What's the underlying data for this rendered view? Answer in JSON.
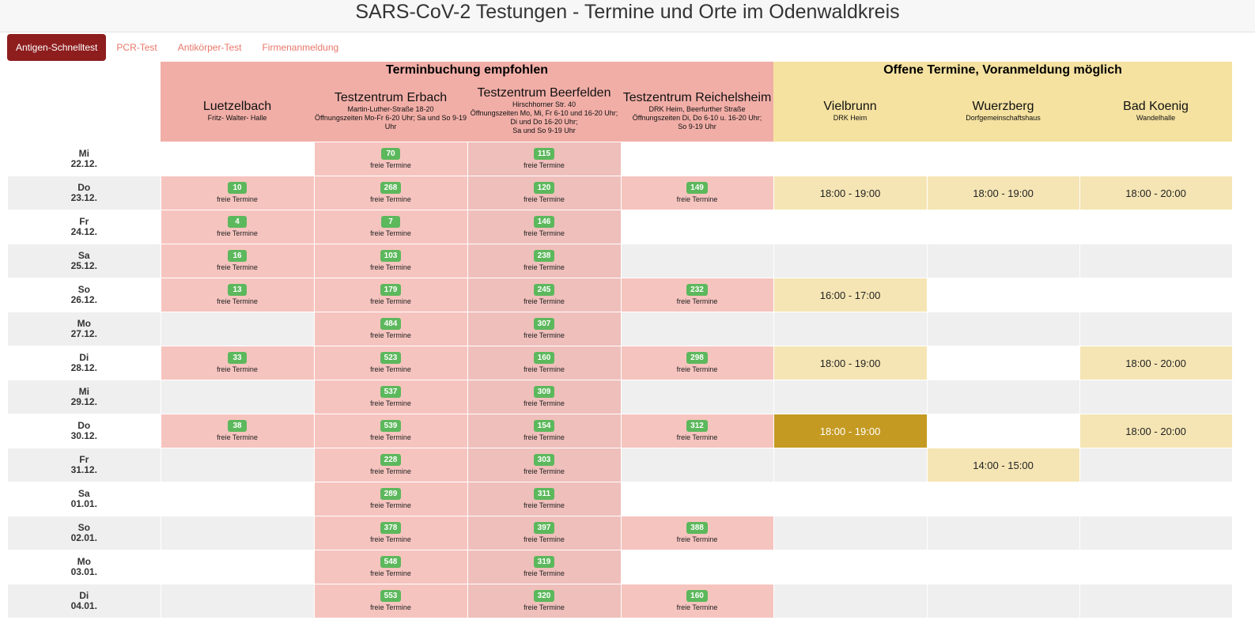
{
  "page": {
    "title": "SARS-CoV-2 Testungen - Termine und Orte im Odenwaldkreis"
  },
  "tabs": [
    {
      "label": "Antigen-Schnelltest",
      "active": true
    },
    {
      "label": "PCR-Test",
      "active": false
    },
    {
      "label": "Antikörper-Test",
      "active": false
    },
    {
      "label": "Firmenanmeldung",
      "active": false
    }
  ],
  "groups": {
    "recommended": "Terminbuchung empfohlen",
    "open": "Offene Termine, Voranmeldung möglich"
  },
  "locations": [
    {
      "name": "Luetzelbach",
      "sub": [
        "Fritz- Walter- Halle"
      ]
    },
    {
      "name": "Testzentrum Erbach",
      "sub": [
        "Martin-Luther-Straße 18-20",
        "Öffnungszeiten Mo-Fr 6-20 Uhr; Sa und So 9-19 Uhr"
      ]
    },
    {
      "name": "Testzentrum Beerfelden",
      "sub": [
        "Hirschhorner Str. 40",
        "Öffnungszeiten Mo, Mi, Fr 6-10 und 16-20 Uhr;",
        "Di und Do 16-20 Uhr;",
        "Sa und So 9-19 Uhr"
      ]
    },
    {
      "name": "Testzentrum Reichelsheim",
      "sub": [
        "DRK Heim, Beerfurther Straße",
        "Öffnungszeiten Di, Do 6-10 u. 16-20 Uhr;",
        "So 9-19 Uhr"
      ]
    },
    {
      "name": "Vielbrunn",
      "sub": [
        "DRK Heim"
      ]
    },
    {
      "name": "Wuerzberg",
      "sub": [
        "Dorfgemeinschaftshaus"
      ]
    },
    {
      "name": "Bad Koenig",
      "sub": [
        "Wandelhalle"
      ]
    }
  ],
  "free_label": "freie Termine",
  "rows": [
    {
      "day": "Mi",
      "date": "22.12.",
      "free": [
        null,
        70,
        115,
        null
      ],
      "open": [
        null,
        null,
        null
      ]
    },
    {
      "day": "Do",
      "date": "23.12.",
      "free": [
        10,
        268,
        120,
        149
      ],
      "open": [
        "18:00 - 19:00",
        "18:00 - 19:00",
        "18:00 - 20:00"
      ]
    },
    {
      "day": "Fr",
      "date": "24.12.",
      "free": [
        4,
        7,
        146,
        null
      ],
      "open": [
        null,
        null,
        null
      ]
    },
    {
      "day": "Sa",
      "date": "25.12.",
      "free": [
        16,
        103,
        238,
        null
      ],
      "open": [
        null,
        null,
        null
      ]
    },
    {
      "day": "So",
      "date": "26.12.",
      "free": [
        13,
        179,
        245,
        232
      ],
      "open": [
        "16:00 - 17:00",
        null,
        null
      ]
    },
    {
      "day": "Mo",
      "date": "27.12.",
      "free": [
        null,
        484,
        307,
        null
      ],
      "open": [
        null,
        null,
        null
      ]
    },
    {
      "day": "Di",
      "date": "28.12.",
      "free": [
        33,
        523,
        160,
        298
      ],
      "open": [
        "18:00 - 19:00",
        null,
        "18:00 - 20:00"
      ]
    },
    {
      "day": "Mi",
      "date": "29.12.",
      "free": [
        null,
        537,
        309,
        null
      ],
      "open": [
        null,
        null,
        null
      ]
    },
    {
      "day": "Do",
      "date": "30.12.",
      "free": [
        38,
        539,
        154,
        312
      ],
      "open": [
        "18:00 - 19:00",
        null,
        "18:00 - 20:00"
      ],
      "highlight": [
        true,
        false,
        false
      ]
    },
    {
      "day": "Fr",
      "date": "31.12.",
      "free": [
        null,
        228,
        303,
        null
      ],
      "open": [
        null,
        "14:00 - 15:00",
        null
      ]
    },
    {
      "day": "Sa",
      "date": "01.01.",
      "free": [
        null,
        289,
        311,
        null
      ],
      "open": [
        null,
        null,
        null
      ]
    },
    {
      "day": "So",
      "date": "02.01.",
      "free": [
        null,
        378,
        397,
        388
      ],
      "open": [
        null,
        null,
        null
      ]
    },
    {
      "day": "Mo",
      "date": "03.01.",
      "free": [
        null,
        548,
        319,
        null
      ],
      "open": [
        null,
        null,
        null
      ]
    },
    {
      "day": "Di",
      "date": "04.01.",
      "free": [
        null,
        553,
        320,
        160
      ],
      "open": [
        null,
        null,
        null
      ]
    }
  ],
  "colors": {
    "accent": "#8e1d1e",
    "badge": "#5cb85c",
    "highlight": "#c49a22"
  }
}
